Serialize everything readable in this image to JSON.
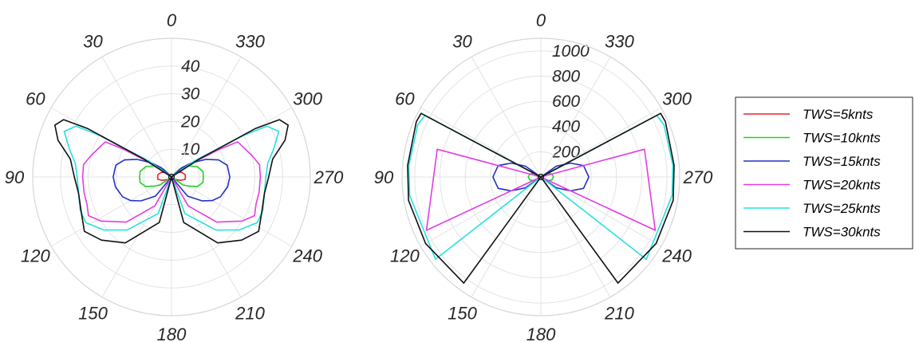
{
  "chart_data": [
    {
      "type": "polar-line",
      "theta_direction": "counterclockwise, zero at top",
      "angle_tick_labels": [
        "0",
        "30",
        "60",
        "90",
        "120",
        "150",
        "180",
        "210",
        "240",
        "270",
        "300",
        "330"
      ],
      "r_tick_labels": [
        "10",
        "20",
        "30",
        "40"
      ],
      "rlim": [
        0,
        50
      ],
      "grid": true,
      "series": [
        {
          "name": "TWS=5knts",
          "color": "#e0262b",
          "points": [
            [
              0,
              0
            ],
            [
              50,
              2.5
            ],
            [
              65,
              4
            ],
            [
              80,
              5
            ],
            [
              90,
              5
            ],
            [
              100,
              5
            ],
            [
              110,
              3.5
            ],
            [
              125,
              1.5
            ],
            [
              180,
              0
            ],
            [
              235,
              1.5
            ],
            [
              250,
              3.5
            ],
            [
              260,
              5
            ],
            [
              270,
              5
            ],
            [
              280,
              5
            ],
            [
              295,
              4
            ],
            [
              310,
              2.5
            ],
            [
              360,
              0
            ]
          ]
        },
        {
          "name": "TWS=10knts",
          "color": "#22d122",
          "points": [
            [
              0,
              0
            ],
            [
              45,
              4
            ],
            [
              55,
              7
            ],
            [
              68,
              10
            ],
            [
              80,
              11.5
            ],
            [
              90,
              11.5
            ],
            [
              100,
              11.5
            ],
            [
              110,
              10
            ],
            [
              118,
              7
            ],
            [
              125,
              5
            ],
            [
              180,
              0
            ],
            [
              235,
              5
            ],
            [
              242,
              7
            ],
            [
              250,
              10
            ],
            [
              260,
              11.5
            ],
            [
              270,
              11.5
            ],
            [
              280,
              11.5
            ],
            [
              292,
              10
            ],
            [
              305,
              7
            ],
            [
              315,
              4
            ],
            [
              360,
              0
            ]
          ]
        },
        {
          "name": "TWS=15knts",
          "color": "#2330c8",
          "points": [
            [
              0,
              0
            ],
            [
              48,
              5
            ],
            [
              55,
              9
            ],
            [
              63,
              14
            ],
            [
              70,
              18
            ],
            [
              78,
              20.5
            ],
            [
              90,
              21
            ],
            [
              100,
              20.5
            ],
            [
              112,
              19
            ],
            [
              120,
              17
            ],
            [
              128,
              14
            ],
            [
              140,
              9
            ],
            [
              180,
              0
            ],
            [
              220,
              9
            ],
            [
              232,
              14
            ],
            [
              240,
              17
            ],
            [
              248,
              19
            ],
            [
              260,
              20.5
            ],
            [
              270,
              21
            ],
            [
              282,
              20.5
            ],
            [
              290,
              18
            ],
            [
              297,
              14
            ],
            [
              305,
              9
            ],
            [
              312,
              5
            ],
            [
              360,
              0
            ]
          ]
        },
        {
          "name": "TWS=20knts",
          "color": "#e23de2",
          "points": [
            [
              0,
              0
            ],
            [
              55,
              8
            ],
            [
              60,
              20
            ],
            [
              62,
              27
            ],
            [
              75,
              30
            ],
            [
              82,
              32
            ],
            [
              90,
              32
            ],
            [
              100,
              32
            ],
            [
              108,
              32
            ],
            [
              115,
              33
            ],
            [
              122,
              30
            ],
            [
              135,
              23
            ],
            [
              150,
              12
            ],
            [
              180,
              0
            ],
            [
              210,
              12
            ],
            [
              225,
              23
            ],
            [
              238,
              30
            ],
            [
              245,
              33
            ],
            [
              252,
              32
            ],
            [
              260,
              32
            ],
            [
              270,
              32
            ],
            [
              278,
              32
            ],
            [
              285,
              30
            ],
            [
              298,
              27
            ],
            [
              300,
              20
            ],
            [
              305,
              8
            ],
            [
              360,
              0
            ]
          ]
        },
        {
          "name": "TWS=25knts",
          "color": "#27e0e2",
          "points": [
            [
              0,
              0
            ],
            [
              55,
              10
            ],
            [
              60,
              30
            ],
            [
              62,
              39
            ],
            [
              67,
              42
            ],
            [
              75,
              38
            ],
            [
              82,
              35
            ],
            [
              90,
              34
            ],
            [
              100,
              34
            ],
            [
              110,
              35
            ],
            [
              118,
              35
            ],
            [
              128,
              31
            ],
            [
              140,
              25
            ],
            [
              160,
              14
            ],
            [
              180,
              0
            ],
            [
              200,
              14
            ],
            [
              220,
              25
            ],
            [
              232,
              31
            ],
            [
              242,
              35
            ],
            [
              250,
              35
            ],
            [
              260,
              34
            ],
            [
              270,
              34
            ],
            [
              278,
              35
            ],
            [
              285,
              38
            ],
            [
              293,
              42
            ],
            [
              298,
              39
            ],
            [
              300,
              30
            ],
            [
              305,
              10
            ],
            [
              360,
              0
            ]
          ]
        },
        {
          "name": "TWS=30knts",
          "color": "#111111",
          "points": [
            [
              0,
              0
            ],
            [
              57,
              12
            ],
            [
              60,
              35
            ],
            [
              62,
              44
            ],
            [
              66,
              46
            ],
            [
              72,
              43
            ],
            [
              80,
              37
            ],
            [
              90,
              35
            ],
            [
              100,
              34
            ],
            [
              112,
              35
            ],
            [
              122,
              37
            ],
            [
              132,
              34
            ],
            [
              145,
              29
            ],
            [
              165,
              17
            ],
            [
              180,
              0
            ],
            [
              195,
              17
            ],
            [
              215,
              29
            ],
            [
              228,
              34
            ],
            [
              238,
              37
            ],
            [
              248,
              35
            ],
            [
              260,
              34
            ],
            [
              270,
              35
            ],
            [
              280,
              37
            ],
            [
              288,
              43
            ],
            [
              294,
              46
            ],
            [
              298,
              44
            ],
            [
              300,
              35
            ],
            [
              303,
              12
            ],
            [
              360,
              0
            ]
          ]
        }
      ]
    },
    {
      "type": "polar-line",
      "theta_direction": "counterclockwise, zero at top",
      "angle_tick_labels": [
        "0",
        "30",
        "60",
        "90",
        "120",
        "150",
        "180",
        "210",
        "240",
        "270",
        "300",
        "330"
      ],
      "r_tick_labels": [
        "200",
        "400",
        "600",
        "800",
        "1000"
      ],
      "rlim": [
        0,
        1100
      ],
      "grid": true,
      "series": [
        {
          "name": "TWS=5knts",
          "color": "#e0262b",
          "points": [
            [
              0,
              0
            ],
            [
              90,
              15
            ],
            [
              180,
              0
            ],
            [
              270,
              15
            ],
            [
              360,
              0
            ]
          ]
        },
        {
          "name": "TWS=10knts",
          "color": "#22d122",
          "points": [
            [
              0,
              0
            ],
            [
              60,
              60
            ],
            [
              75,
              90
            ],
            [
              90,
              100
            ],
            [
              105,
              90
            ],
            [
              120,
              60
            ],
            [
              180,
              0
            ],
            [
              240,
              60
            ],
            [
              255,
              90
            ],
            [
              270,
              100
            ],
            [
              285,
              90
            ],
            [
              300,
              60
            ],
            [
              360,
              0
            ]
          ]
        },
        {
          "name": "TWS=15knts",
          "color": "#2330c8",
          "points": [
            [
              0,
              0
            ],
            [
              55,
              150
            ],
            [
              65,
              260
            ],
            [
              75,
              350
            ],
            [
              90,
              380
            ],
            [
              105,
              350
            ],
            [
              115,
              260
            ],
            [
              125,
              150
            ],
            [
              180,
              0
            ],
            [
              235,
              150
            ],
            [
              245,
              260
            ],
            [
              255,
              350
            ],
            [
              270,
              380
            ],
            [
              285,
              350
            ],
            [
              295,
              260
            ],
            [
              305,
              150
            ],
            [
              360,
              0
            ]
          ]
        },
        {
          "name": "TWS=20knts",
          "color": "#e23de2",
          "points": [
            [
              0,
              0
            ],
            [
              75,
              850
            ],
            [
              90,
              850
            ],
            [
              115,
              1000
            ],
            [
              180,
              0
            ],
            [
              245,
              1000
            ],
            [
              270,
              850
            ],
            [
              285,
              850
            ],
            [
              360,
              0
            ]
          ]
        },
        {
          "name": "TWS=25knts",
          "color": "#27e0e2",
          "points": [
            [
              0,
              0
            ],
            [
              62,
              1040
            ],
            [
              67,
              1060
            ],
            [
              85,
              1050
            ],
            [
              98,
              1050
            ],
            [
              128,
              1060
            ],
            [
              180,
              0
            ],
            [
              232,
              1060
            ],
            [
              262,
              1050
            ],
            [
              275,
              1050
            ],
            [
              293,
              1060
            ],
            [
              298,
              1040
            ],
            [
              360,
              0
            ]
          ]
        },
        {
          "name": "TWS=30knts",
          "color": "#111111",
          "points": [
            [
              0,
              0
            ],
            [
              62,
              1075
            ],
            [
              66,
              1080
            ],
            [
              85,
              1060
            ],
            [
              100,
              1065
            ],
            [
              120,
              1055
            ],
            [
              144,
              1040
            ],
            [
              180,
              0
            ],
            [
              216,
              1040
            ],
            [
              240,
              1055
            ],
            [
              260,
              1065
            ],
            [
              275,
              1060
            ],
            [
              294,
              1080
            ],
            [
              298,
              1075
            ],
            [
              360,
              0
            ]
          ]
        }
      ]
    }
  ],
  "legend": {
    "placement": "right",
    "entries": [
      {
        "label": "TWS=5knts",
        "color": "#e0262b"
      },
      {
        "label": "TWS=10knts",
        "color": "#22d122"
      },
      {
        "label": "TWS=15knts",
        "color": "#2330c8"
      },
      {
        "label": "TWS=20knts",
        "color": "#e23de2"
      },
      {
        "label": "TWS=25knts",
        "color": "#27e0e2"
      },
      {
        "label": "TWS=30knts",
        "color": "#111111"
      }
    ]
  }
}
